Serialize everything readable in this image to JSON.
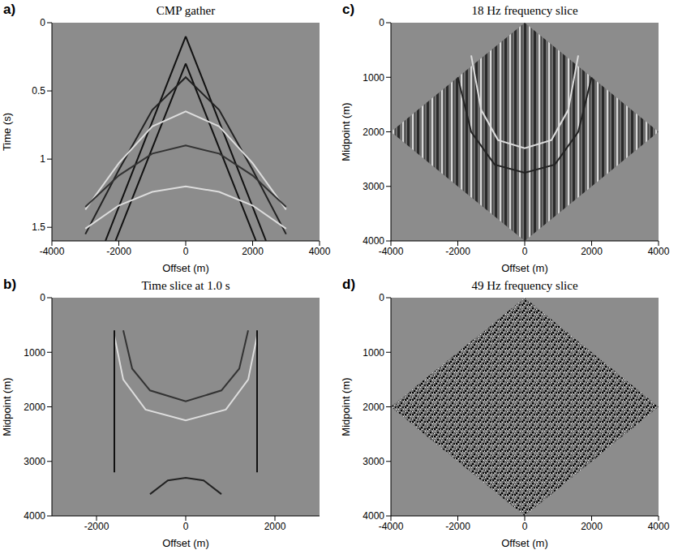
{
  "chart_data": [
    {
      "type": "line",
      "label": "a)",
      "title": "CMP gather",
      "xlabel": "Offset (m)",
      "ylabel": "Time (s)",
      "xlim": [
        -4000,
        4000
      ],
      "xticks": [
        -4000,
        -2000,
        0,
        2000,
        4000
      ],
      "ylim": [
        0,
        1.6
      ],
      "yticks": [
        0,
        0.5,
        1,
        1.5
      ],
      "series": [
        {
          "type": "line",
          "color": "#111111",
          "x": [
            0,
            -2400
          ],
          "values": [
            0.1,
            1.6
          ]
        },
        {
          "type": "line",
          "color": "#111111",
          "x": [
            0,
            2400
          ],
          "values": [
            0.1,
            1.6
          ]
        },
        {
          "type": "line",
          "color": "#111111",
          "x": [
            0,
            -2100
          ],
          "values": [
            0.3,
            1.6
          ]
        },
        {
          "type": "line",
          "color": "#111111",
          "x": [
            0,
            2100
          ],
          "values": [
            0.3,
            1.6
          ]
        },
        {
          "type": "line",
          "color": "#222222",
          "x": [
            -3000,
            -2000,
            -1000,
            0,
            1000,
            2000,
            3000
          ],
          "values": [
            1.55,
            1.08,
            0.64,
            0.4,
            0.64,
            1.08,
            1.55
          ]
        },
        {
          "type": "line",
          "color": "#dddddd",
          "x": [
            -3000,
            -2000,
            -1000,
            0,
            1000,
            2000,
            3000
          ],
          "values": [
            1.37,
            1.03,
            0.76,
            0.65,
            0.76,
            1.03,
            1.37
          ]
        },
        {
          "type": "line",
          "color": "#333333",
          "x": [
            -3000,
            -2000,
            -1000,
            0,
            1000,
            2000,
            3000
          ],
          "values": [
            1.35,
            1.12,
            0.96,
            0.9,
            0.96,
            1.12,
            1.35
          ]
        },
        {
          "type": "line",
          "color": "#dddddd",
          "x": [
            -3000,
            -2000,
            -1000,
            0,
            1000,
            2000,
            3000
          ],
          "values": [
            1.51,
            1.34,
            1.24,
            1.2,
            1.24,
            1.34,
            1.51
          ]
        }
      ]
    },
    {
      "type": "line",
      "label": "b)",
      "title": "Time slice at 1.0 s",
      "xlabel": "Offset (m)",
      "ylabel": "Midpoint (m)",
      "xlim": [
        -3000,
        3000
      ],
      "xticks": [
        -2000,
        0,
        2000
      ],
      "ylim": [
        0,
        4000
      ],
      "yticks": [
        0,
        1000,
        2000,
        3000,
        4000
      ],
      "series": [
        {
          "type": "line",
          "color": "#333333",
          "x": [
            -1400,
            -1200,
            -800,
            0,
            800,
            1200,
            1400
          ],
          "values": [
            600,
            1300,
            1700,
            1900,
            1700,
            1300,
            600
          ]
        },
        {
          "type": "line",
          "color": "#dddddd",
          "x": [
            -1600,
            -1400,
            -900,
            0,
            900,
            1400,
            1600
          ],
          "values": [
            700,
            1500,
            2050,
            2250,
            2050,
            1500,
            700
          ]
        },
        {
          "type": "line",
          "color": "#222222",
          "x": [
            -800,
            -400,
            0,
            400,
            800
          ],
          "values": [
            3600,
            3350,
            3300,
            3350,
            3600
          ]
        },
        {
          "type": "line",
          "color": "#111111",
          "x": [
            -1600,
            -1600
          ],
          "values": [
            600,
            3200
          ]
        },
        {
          "type": "line",
          "color": "#111111",
          "x": [
            1600,
            1600
          ],
          "values": [
            600,
            3200
          ]
        }
      ]
    },
    {
      "type": "line",
      "label": "c)",
      "title": "18 Hz frequency slice",
      "xlabel": "Offset (m)",
      "ylabel": "Midpoint (m)",
      "xlim": [
        -4000,
        4000
      ],
      "xticks": [
        -4000,
        -2000,
        0,
        2000,
        4000
      ],
      "ylim": [
        0,
        4000
      ],
      "yticks": [
        0,
        1000,
        2000,
        3000,
        4000
      ],
      "series": [
        {
          "type": "area",
          "color": "#6e6e6e",
          "x": [
            -4000,
            0,
            4000
          ],
          "values": [
            [
              2000,
              2000
            ],
            [
              0,
              4000
            ],
            [
              2000,
              2000
            ]
          ]
        },
        {
          "type": "line",
          "color": "#dddddd",
          "x": [
            -1600,
            -1300,
            -800,
            0,
            800,
            1300,
            1600
          ],
          "values": [
            600,
            1600,
            2150,
            2300,
            2150,
            1600,
            600
          ]
        },
        {
          "type": "line",
          "color": "#222222",
          "x": [
            -2000,
            -1600,
            -900,
            0,
            900,
            1600,
            2000
          ],
          "values": [
            1000,
            2000,
            2600,
            2750,
            2600,
            2000,
            1000
          ]
        }
      ]
    },
    {
      "type": "line",
      "label": "d)",
      "title": "49 Hz frequency slice",
      "xlabel": "Offset (m)",
      "ylabel": "Midpoint (m)",
      "xlim": [
        -4000,
        4000
      ],
      "xticks": [
        -4000,
        -2000,
        0,
        2000,
        4000
      ],
      "ylim": [
        0,
        4000
      ],
      "yticks": [
        0,
        1000,
        2000,
        3000,
        4000
      ],
      "series": [
        {
          "type": "area",
          "color": "#777777",
          "x": [
            -4000,
            0,
            4000
          ],
          "values": [
            [
              2000,
              2000
            ],
            [
              0,
              4000
            ],
            [
              2000,
              2000
            ]
          ]
        }
      ]
    }
  ]
}
